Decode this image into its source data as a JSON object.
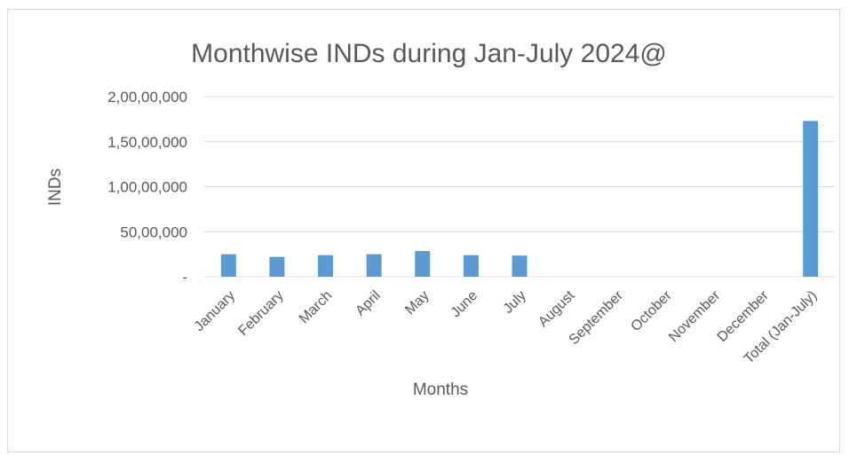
{
  "chart_data": {
    "type": "bar",
    "title": "Monthwise INDs during Jan-July 2024@",
    "xlabel": "Months",
    "ylabel": "INDs",
    "categories": [
      "January",
      "February",
      "March",
      "April",
      "May",
      "June",
      "July",
      "August",
      "September",
      "October",
      "November",
      "December",
      "Total (Jan-July)"
    ],
    "values": [
      2500000,
      2200000,
      2400000,
      2500000,
      2850000,
      2400000,
      2350000,
      0,
      0,
      0,
      0,
      0,
      17300000
    ],
    "ylim": [
      0,
      20000000
    ],
    "yticks": [
      0,
      5000000,
      10000000,
      15000000,
      20000000
    ],
    "ytick_labels": [
      "-",
      "50,00,000",
      "1,00,00,000",
      "1,50,00,000",
      "2,00,00,000"
    ],
    "grid": true,
    "bar_color": "#5b9bd5",
    "grid_color": "#d9d9d9"
  }
}
